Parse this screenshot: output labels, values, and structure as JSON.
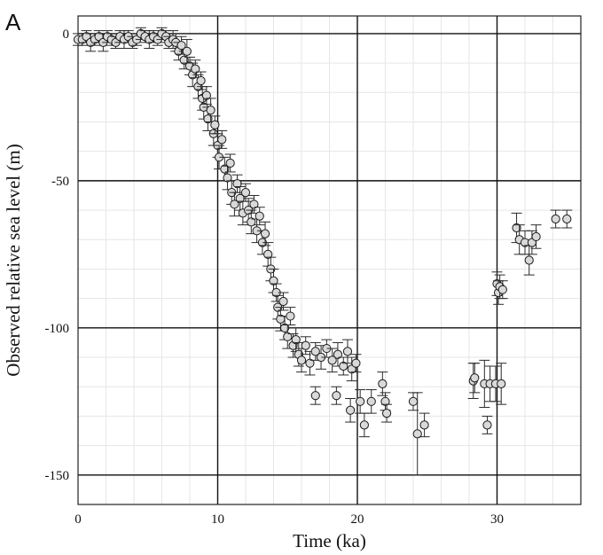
{
  "panel_label": "A",
  "chart_data": {
    "type": "scatter",
    "title": "",
    "xlabel": "Time (ka)",
    "ylabel": "Observed relative sea level (m)",
    "xlim": [
      0,
      36
    ],
    "ylim": [
      -160,
      6
    ],
    "x_ticks": [
      0,
      10,
      20,
      30
    ],
    "y_ticks": [
      0,
      -50,
      -100,
      -150
    ],
    "grid": true,
    "legend": "none",
    "colors": {
      "marker_fill": "#d9d9d9",
      "marker_edge": "#1a1a1a",
      "major_grid": "#111111",
      "minor_grid": "#e6e6e6"
    },
    "series": [
      {
        "points": [
          [
            0.0,
            -2,
            2
          ],
          [
            0.3,
            -2,
            2
          ],
          [
            0.6,
            -1,
            2
          ],
          [
            0.9,
            -3,
            3
          ],
          [
            1.2,
            -2,
            2
          ],
          [
            1.5,
            -1,
            2
          ],
          [
            1.8,
            -3,
            3
          ],
          [
            2.1,
            -1,
            2
          ],
          [
            2.4,
            -2,
            2
          ],
          [
            2.7,
            -3,
            2
          ],
          [
            3.0,
            -1,
            2
          ],
          [
            3.3,
            -2,
            3
          ],
          [
            3.6,
            -1,
            2
          ],
          [
            3.9,
            -3,
            2
          ],
          [
            4.2,
            -2,
            2
          ],
          [
            4.5,
            0,
            2
          ],
          [
            4.8,
            -1,
            2
          ],
          [
            5.1,
            -2,
            3
          ],
          [
            5.4,
            -1,
            2
          ],
          [
            5.7,
            -2,
            2
          ],
          [
            6.0,
            0,
            2
          ],
          [
            6.3,
            -1,
            2
          ],
          [
            6.5,
            -3,
            2
          ],
          [
            6.8,
            -2,
            3
          ],
          [
            7.0,
            -3,
            3
          ],
          [
            7.2,
            -6,
            3
          ],
          [
            7.4,
            -4,
            3
          ],
          [
            7.6,
            -9,
            3
          ],
          [
            7.8,
            -6,
            4
          ],
          [
            8.0,
            -11,
            3
          ],
          [
            8.2,
            -14,
            4
          ],
          [
            8.4,
            -12,
            3
          ],
          [
            8.6,
            -18,
            4
          ],
          [
            8.8,
            -16,
            3
          ],
          [
            8.9,
            -22,
            4
          ],
          [
            9.0,
            -25,
            4
          ],
          [
            9.2,
            -21,
            3
          ],
          [
            9.3,
            -29,
            4
          ],
          [
            9.5,
            -26,
            4
          ],
          [
            9.7,
            -34,
            4
          ],
          [
            9.8,
            -31,
            3
          ],
          [
            10.0,
            -38,
            4
          ],
          [
            10.1,
            -42,
            4
          ],
          [
            10.3,
            -36,
            3
          ],
          [
            10.5,
            -46,
            4
          ],
          [
            10.7,
            -49,
            4
          ],
          [
            10.9,
            -44,
            3
          ],
          [
            11.0,
            -54,
            4
          ],
          [
            11.2,
            -58,
            4
          ],
          [
            11.4,
            -51,
            3
          ],
          [
            11.6,
            -56,
            4
          ],
          [
            11.8,
            -61,
            4
          ],
          [
            12.0,
            -54,
            3
          ],
          [
            12.2,
            -60,
            4
          ],
          [
            12.4,
            -64,
            4
          ],
          [
            12.6,
            -58,
            3
          ],
          [
            12.8,
            -67,
            4
          ],
          [
            13.0,
            -62,
            3
          ],
          [
            13.2,
            -71,
            4
          ],
          [
            13.4,
            -68,
            4
          ],
          [
            13.6,
            -75,
            4
          ],
          [
            13.8,
            -80,
            4
          ],
          [
            14.0,
            -84,
            4
          ],
          [
            14.2,
            -88,
            3
          ],
          [
            14.3,
            -93,
            4
          ],
          [
            14.5,
            -97,
            4
          ],
          [
            14.7,
            -91,
            3
          ],
          [
            14.8,
            -100,
            4
          ],
          [
            15.0,
            -103,
            4
          ],
          [
            15.2,
            -96,
            3
          ],
          [
            15.4,
            -106,
            4
          ],
          [
            15.6,
            -104,
            4
          ],
          [
            15.8,
            -109,
            4
          ],
          [
            16.0,
            -111,
            4
          ],
          [
            16.3,
            -106,
            3
          ],
          [
            16.6,
            -112,
            4
          ],
          [
            17.0,
            -108,
            3
          ],
          [
            17.4,
            -110,
            4
          ],
          [
            17.8,
            -107,
            3
          ],
          [
            18.2,
            -111,
            4
          ],
          [
            18.6,
            -109,
            4
          ],
          [
            19.0,
            -113,
            3
          ],
          [
            19.3,
            -108,
            4
          ],
          [
            19.6,
            -114,
            4
          ],
          [
            19.9,
            -112,
            3
          ],
          [
            17.0,
            -123,
            3
          ],
          [
            18.5,
            -123,
            3
          ],
          [
            19.5,
            -128,
            4
          ],
          [
            20.2,
            -125,
            4
          ],
          [
            20.5,
            -133,
            4
          ],
          [
            21.0,
            -125,
            4
          ],
          [
            21.8,
            -119,
            4
          ],
          [
            22.0,
            -125,
            3
          ],
          [
            22.1,
            -129,
            3
          ],
          [
            24.0,
            -125,
            3
          ],
          [
            24.3,
            -136,
            14
          ],
          [
            24.8,
            -133,
            4
          ],
          [
            28.3,
            -118,
            6
          ],
          [
            28.4,
            -117,
            5
          ],
          [
            29.1,
            -119,
            8
          ],
          [
            29.5,
            -119,
            6
          ],
          [
            29.9,
            -119,
            6
          ],
          [
            30.3,
            -119,
            7
          ],
          [
            29.3,
            -133,
            3
          ],
          [
            30.0,
            -85,
            4
          ],
          [
            30.1,
            -88,
            4
          ],
          [
            30.2,
            -86,
            4
          ],
          [
            30.4,
            -87,
            3
          ],
          [
            31.4,
            -66,
            5
          ],
          [
            31.6,
            -70,
            5
          ],
          [
            32.0,
            -71,
            4
          ],
          [
            32.3,
            -77,
            5
          ],
          [
            32.5,
            -71,
            4
          ],
          [
            32.8,
            -69,
            4
          ],
          [
            34.2,
            -63,
            3
          ],
          [
            35.0,
            -63,
            3
          ]
        ]
      }
    ]
  }
}
